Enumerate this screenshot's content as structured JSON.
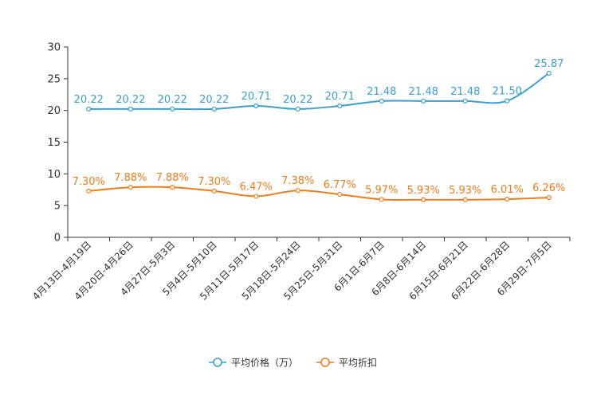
{
  "chart_data": {
    "type": "line",
    "title": "",
    "xlabel": "",
    "ylabel": "",
    "ylim": [
      0,
      30
    ],
    "yticks": [
      0,
      5,
      10,
      15,
      20,
      25,
      30
    ],
    "grid": false,
    "legend_position": "bottom-center",
    "categories": [
      "4月13日-4月19日",
      "4月20日-4月26日",
      "4月27日-5月3日",
      "5月4日-5月10日",
      "5月11日-5月17日",
      "5月18日-5月24日",
      "5月25日-5月31日",
      "6月1日-6月7日",
      "6月8日-6月14日",
      "6月15日-6月21日",
      "6月22日-6月28日",
      "6月29日-7月5日"
    ],
    "series": [
      {
        "name": "平均价格（万）",
        "color": "#3a9fd1",
        "values": [
          20.22,
          20.22,
          20.22,
          20.22,
          20.71,
          20.22,
          20.71,
          21.48,
          21.48,
          21.48,
          21.5,
          25.87
        ],
        "labels": [
          "20.22",
          "20.22",
          "20.22",
          "20.22",
          "20.71",
          "20.22",
          "20.71",
          "21.48",
          "21.48",
          "21.48",
          "21.50",
          "25.87"
        ]
      },
      {
        "name": "平均折扣",
        "color": "#f07c1a",
        "values": [
          7.3,
          7.88,
          7.88,
          7.3,
          6.47,
          7.38,
          6.77,
          5.97,
          5.93,
          5.93,
          6.01,
          6.26
        ],
        "labels": [
          "7.30%",
          "7.88%",
          "7.88%",
          "7.30%",
          "6.47%",
          "7.38%",
          "6.77%",
          "5.97%",
          "5.93%",
          "5.93%",
          "6.01%",
          "6.26%"
        ]
      }
    ]
  }
}
